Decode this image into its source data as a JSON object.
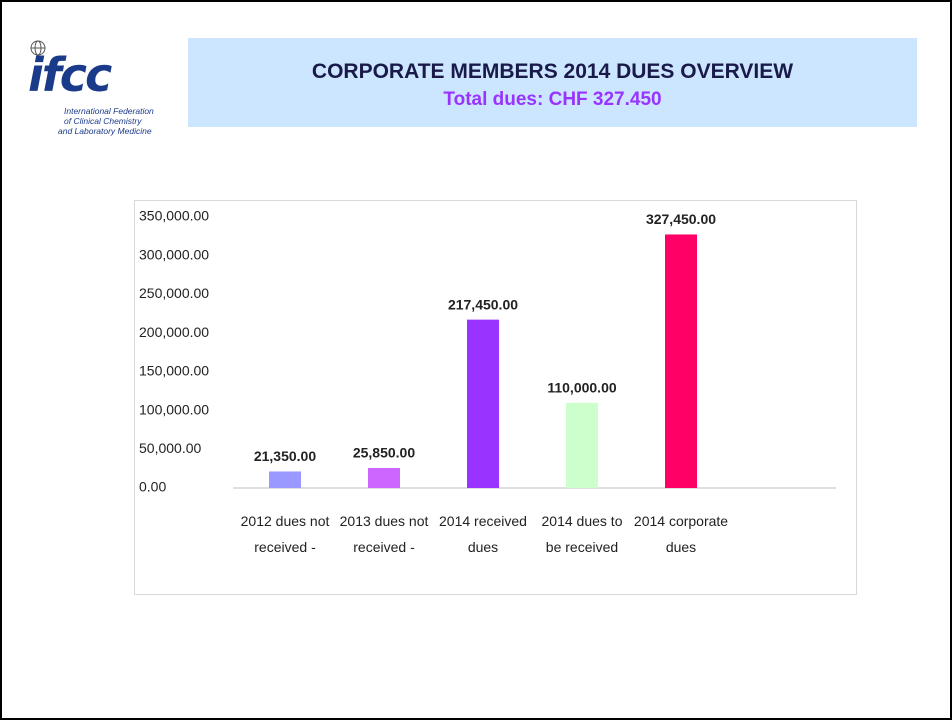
{
  "header": {
    "logo": "ifcc",
    "logo_lines": [
      "International Federation",
      "of Clinical Chemistry",
      "and Laboratory Medicine"
    ],
    "title": "CORPORATE MEMBERS 2014 DUES OVERVIEW",
    "subtitle": "Total dues: CHF 327.450"
  },
  "chart_data": {
    "type": "bar",
    "categories": [
      "2012 dues not received -",
      "2013 dues not received -",
      "2014 received dues",
      "2014 dues to be received",
      "2014 corporate dues"
    ],
    "values": [
      21350,
      25850,
      217450,
      110000,
      327450
    ],
    "value_labels": [
      "21,350.00",
      "25,850.00",
      "217,450.00",
      "110,000.00",
      "327,450.00"
    ],
    "colors": [
      "#9999ff",
      "#cc66ff",
      "#9933ff",
      "#ccffcc",
      "#ff0066"
    ],
    "ylim": [
      0,
      350000
    ],
    "yticks": [
      {
        "value": 0,
        "label": "0.00"
      },
      {
        "value": 50000,
        "label": "50,000.00"
      },
      {
        "value": 100000,
        "label": "100,000.00"
      },
      {
        "value": 150000,
        "label": "150,000.00"
      },
      {
        "value": 200000,
        "label": "200,000.00"
      },
      {
        "value": 250000,
        "label": "250,000.00"
      },
      {
        "value": 300000,
        "label": "300,000.00"
      },
      {
        "value": 350000,
        "label": "350,000.00"
      }
    ],
    "grid": false
  }
}
